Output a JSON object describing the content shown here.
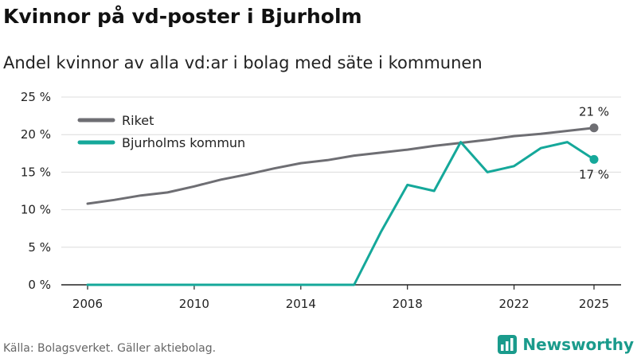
{
  "title": "Kvinnor på vd-poster i Bjurholm",
  "subtitle": "Andel kvinnor av alla vd:ar i bolag med säte i kommunen",
  "source": "Källa: Bolagsverket. Gäller aktiebolag.",
  "brand": {
    "name": "Newsworthy",
    "icon": "bar-chart-logo-icon",
    "color": "#1a9b8c"
  },
  "chart_data": {
    "type": "line",
    "xlim": [
      2006,
      2025
    ],
    "ylim": [
      0,
      25
    ],
    "grid": true,
    "legend_position": "top-left",
    "y_ticks": [
      {
        "value": 0,
        "label": "0 %"
      },
      {
        "value": 5,
        "label": "5 %"
      },
      {
        "value": 10,
        "label": "10 %"
      },
      {
        "value": 15,
        "label": "15 %"
      },
      {
        "value": 20,
        "label": "20 %"
      },
      {
        "value": 25,
        "label": "25 %"
      }
    ],
    "x_ticks": [
      {
        "value": 2006,
        "label": "2006"
      },
      {
        "value": 2010,
        "label": "2010"
      },
      {
        "value": 2014,
        "label": "2014"
      },
      {
        "value": 2018,
        "label": "2018"
      },
      {
        "value": 2022,
        "label": "2022"
      },
      {
        "value": 2025,
        "label": "2025"
      }
    ],
    "x": [
      2006,
      2007,
      2008,
      2009,
      2010,
      2011,
      2012,
      2013,
      2014,
      2015,
      2016,
      2017,
      2018,
      2019,
      2020,
      2021,
      2022,
      2023,
      2024,
      2025
    ],
    "series": [
      {
        "name": "Riket",
        "color": "#6e6e73",
        "values": [
          10.8,
          11.3,
          11.9,
          12.3,
          13.1,
          14.0,
          14.7,
          15.5,
          16.2,
          16.6,
          17.2,
          17.6,
          18.0,
          18.5,
          18.9,
          19.3,
          19.8,
          20.1,
          20.5,
          20.9
        ],
        "end_label": "21 %",
        "end_label_position": "above"
      },
      {
        "name": "Bjurholms kommun",
        "color": "#15a89a",
        "values": [
          0,
          0,
          0,
          0,
          0,
          0,
          0,
          0,
          0,
          0,
          0,
          7.0,
          13.3,
          12.5,
          19.0,
          15.0,
          15.8,
          18.2,
          19.0,
          16.7
        ],
        "end_label": "17 %",
        "end_label_position": "below"
      }
    ]
  }
}
